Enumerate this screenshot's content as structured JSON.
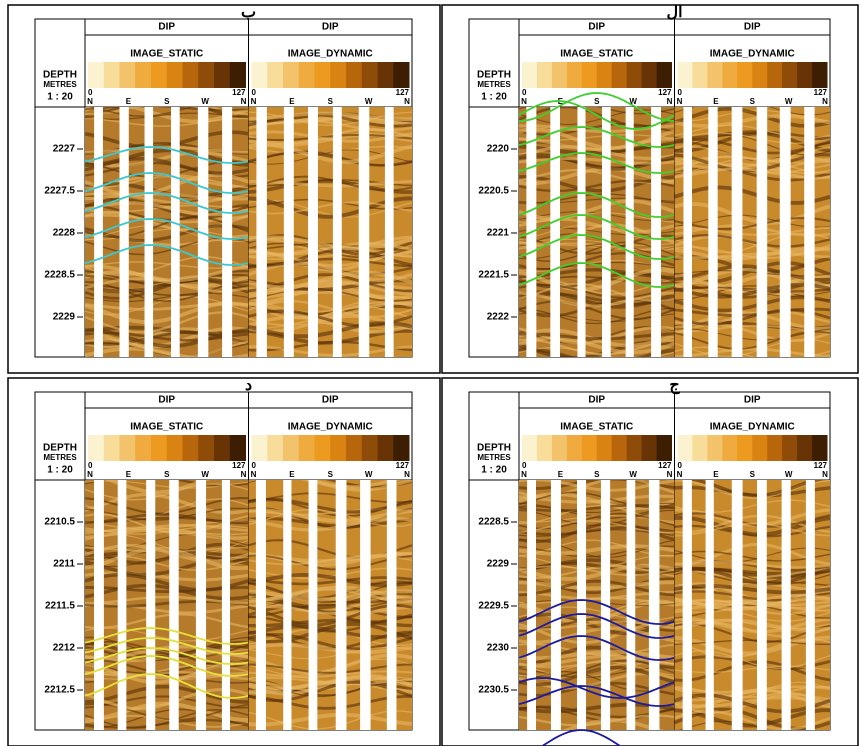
{
  "panels": [
    {
      "label": "ب",
      "depth_header": "DEPTH",
      "depth_units": "METRES",
      "scale": "1 : 20",
      "depth_ticks": [
        2227,
        2227.5,
        2228,
        2228.5,
        2229
      ],
      "curve_color": "#3cc8cf",
      "tracks": [
        {
          "dip": "DIP",
          "title": "IMAGE_STATIC",
          "scale_min": 0,
          "scale_max": 127,
          "azimuths": [
            "N",
            "E",
            "S",
            "W",
            "N"
          ]
        },
        {
          "dip": "DIP",
          "title": "IMAGE_DYNAMIC",
          "scale_min": 0,
          "scale_max": 127,
          "azimuths": [
            "N",
            "E",
            "S",
            "W",
            "N"
          ]
        }
      ]
    },
    {
      "label": "ال",
      "depth_header": "DEPTH",
      "depth_units": "METRES",
      "scale": "1 : 20",
      "depth_ticks": [
        2220,
        2220.5,
        2221,
        2221.5,
        2222
      ],
      "curve_color": "#3fcf2f",
      "tracks": [
        {
          "dip": "DIP",
          "title": "IMAGE_STATIC",
          "scale_min": 0,
          "scale_max": 127,
          "azimuths": [
            "N",
            "E",
            "S",
            "W",
            "N"
          ]
        },
        {
          "dip": "DIP",
          "title": "IMAGE_DYNAMIC",
          "scale_min": 0,
          "scale_max": 127,
          "azimuths": [
            "N",
            "E",
            "S",
            "W",
            "N"
          ]
        }
      ]
    },
    {
      "label": "د",
      "depth_header": "DEPTH",
      "depth_units": "METRES",
      "scale": "1 : 20",
      "depth_ticks": [
        2210.5,
        2211,
        2211.5,
        2212,
        2212.5
      ],
      "curve_color": "#e4e23a",
      "tracks": [
        {
          "dip": "DIP",
          "title": "IMAGE_STATIC",
          "scale_min": 0,
          "scale_max": 127,
          "azimuths": [
            "N",
            "E",
            "S",
            "W",
            "N"
          ]
        },
        {
          "dip": "DIP",
          "title": "IMAGE_DYNAMIC",
          "scale_min": 0,
          "scale_max": 127,
          "azimuths": [
            "N",
            "E",
            "S",
            "W",
            "N"
          ]
        }
      ]
    },
    {
      "label": "ج",
      "depth_header": "DEPTH",
      "depth_units": "METRES",
      "scale": "1 : 20",
      "depth_ticks": [
        2228.5,
        2229,
        2229.5,
        2230,
        2230.5
      ],
      "curve_color": "#1c1ca0",
      "tracks": [
        {
          "dip": "DIP",
          "title": "IMAGE_STATIC",
          "scale_min": 0,
          "scale_max": 127,
          "azimuths": [
            "N",
            "E",
            "S",
            "W",
            "N"
          ]
        },
        {
          "dip": "DIP",
          "title": "IMAGE_DYNAMIC",
          "scale_min": 0,
          "scale_max": 127,
          "azimuths": [
            "N",
            "E",
            "S",
            "W",
            "N"
          ]
        }
      ]
    }
  ]
}
